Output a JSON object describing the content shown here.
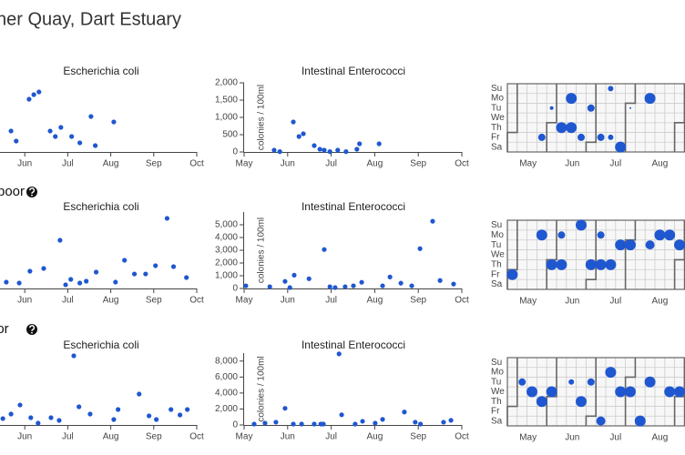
{
  "header": {
    "title": "her Quay, Dart Estuary"
  },
  "section_headings": [
    "poor",
    "oor"
  ],
  "chart_data": [
    {
      "type": "scatter",
      "title": "Escherichia coli",
      "color": "#1f57d0",
      "xlim": [
        5,
        10
      ],
      "ylim": [
        0,
        1000
      ],
      "xticks": [
        {
          "value": 6,
          "label": "Jun"
        },
        {
          "value": 7,
          "label": "Jul"
        },
        {
          "value": 8,
          "label": "Aug"
        },
        {
          "value": 9,
          "label": "Sep"
        },
        {
          "value": 10,
          "label": "Oct"
        }
      ],
      "x": [
        5.68,
        5.8,
        6.1,
        6.21,
        6.33,
        6.59,
        6.71,
        6.84,
        7.09,
        7.28,
        7.54,
        7.64,
        8.07
      ],
      "values": [
        303,
        158,
        763,
        829,
        868,
        303,
        224,
        355,
        224,
        132,
        513,
        92,
        434
      ]
    },
    {
      "type": "scatter",
      "title": "Intestinal Enterococci",
      "color": "#1f57d0",
      "xlim": [
        5,
        10
      ],
      "ylim": [
        0,
        2000
      ],
      "ylabel": "colonies / 100ml",
      "xticks": [
        {
          "value": 5,
          "label": "May"
        },
        {
          "value": 6,
          "label": "Jun"
        },
        {
          "value": 7,
          "label": "Jul"
        },
        {
          "value": 8,
          "label": "Aug"
        },
        {
          "value": 9,
          "label": "Sep"
        },
        {
          "value": 10,
          "label": "Oct"
        }
      ],
      "yticks": [
        0,
        500,
        {
          "value": 1000,
          "label": "1,000"
        },
        {
          "value": 1500,
          "label": "1,500"
        },
        {
          "value": 2000,
          "label": "2,000"
        }
      ],
      "x": [
        5.69,
        5.82,
        6.13,
        6.26,
        6.36,
        6.61,
        6.74,
        6.84,
        6.97,
        7.15,
        7.34,
        7.59,
        7.65,
        8.1
      ],
      "values": [
        53,
        10,
        868,
        447,
        526,
        184,
        79,
        53,
        10,
        53,
        10,
        79,
        237,
        237
      ]
    },
    {
      "type": "calendar",
      "color": "#1f57d0",
      "xlim": [
        -0.5,
        17.5
      ],
      "ylim": [
        -0.5,
        6.5
      ],
      "xticks": [
        {
          "value": 1.6,
          "label": "May"
        },
        {
          "value": 6.1,
          "label": "Jun"
        },
        {
          "value": 10.5,
          "label": "Jul"
        },
        {
          "value": 15,
          "label": "Aug"
        }
      ],
      "yticks": [
        {
          "value": 0,
          "label": "Su"
        },
        {
          "value": 1,
          "label": "Mo"
        },
        {
          "value": 2,
          "label": "Tu"
        },
        {
          "value": 3,
          "label": "We"
        },
        {
          "value": 4,
          "label": "Th"
        },
        {
          "value": 5,
          "label": "Fr"
        },
        {
          "value": 6,
          "label": "Sa"
        }
      ],
      "weeks": [
        3,
        4,
        5,
        6,
        6,
        7,
        8,
        9,
        10,
        10,
        11,
        12,
        14
      ],
      "days": [
        5,
        2,
        4,
        4,
        1,
        5,
        2,
        5,
        0,
        5,
        6,
        2,
        1
      ],
      "values": [
        160,
        40,
        360,
        360,
        360,
        160,
        160,
        160,
        90,
        90,
        360,
        10,
        360
      ]
    },
    {
      "type": "scatter",
      "title": "Escherichia coli",
      "color": "#1f57d0",
      "xlim": [
        5,
        10
      ],
      "ylim": [
        0,
        1000
      ],
      "xticks": [
        {
          "value": 6,
          "label": "Jun"
        },
        {
          "value": 7,
          "label": "Jul"
        },
        {
          "value": 8,
          "label": "Aug"
        },
        {
          "value": 9,
          "label": "Sep"
        },
        {
          "value": 10,
          "label": "Oct"
        }
      ],
      "x": [
        5.57,
        5.87,
        6.12,
        6.44,
        6.82,
        6.95,
        7.07,
        7.28,
        7.43,
        7.66,
        8.11,
        8.32,
        8.55,
        8.81,
        9.04,
        9.31,
        9.46,
        9.76
      ],
      "values": [
        83,
        71,
        226,
        262,
        631,
        48,
        119,
        71,
        95,
        214,
        83,
        369,
        190,
        190,
        298,
        917,
        286,
        143
      ]
    },
    {
      "type": "scatter",
      "title": "Intestinal Enterococci",
      "color": "#1f57d0",
      "xlim": [
        5,
        10
      ],
      "ylim": [
        0,
        6000
      ],
      "ylabel": "colonies / 100ml",
      "xticks": [
        {
          "value": 5,
          "label": "May"
        },
        {
          "value": 6,
          "label": "Jun"
        },
        {
          "value": 7,
          "label": "Jul"
        },
        {
          "value": 8,
          "label": "Aug"
        },
        {
          "value": 9,
          "label": "Sep"
        },
        {
          "value": 10,
          "label": "Oct"
        }
      ],
      "yticks": [
        0,
        {
          "value": 1000,
          "label": "1,000"
        },
        {
          "value": 2000,
          "label": "2,000"
        },
        {
          "value": 3000,
          "label": "3,000"
        },
        {
          "value": 4000,
          "label": "4,000"
        },
        {
          "value": 5000,
          "label": "5,000"
        }
      ],
      "x": [
        5.04,
        5.59,
        5.94,
        6.05,
        6.15,
        6.49,
        6.84,
        6.97,
        7.09,
        7.32,
        7.51,
        7.7,
        8.18,
        8.35,
        8.6,
        8.85,
        9.04,
        9.33,
        9.5,
        9.81
      ],
      "values": [
        208,
        139,
        556,
        69,
        1042,
        764,
        3056,
        139,
        69,
        139,
        208,
        486,
        208,
        903,
        417,
        208,
        3125,
        5278,
        625,
        347
      ]
    },
    {
      "type": "calendar",
      "color": "#1f57d0",
      "xlim": [
        -0.5,
        17.5
      ],
      "ylim": [
        -0.5,
        6.5
      ],
      "xticks": [
        {
          "value": 1.6,
          "label": "May"
        },
        {
          "value": 6.1,
          "label": "Jun"
        },
        {
          "value": 10.5,
          "label": "Jul"
        },
        {
          "value": 15,
          "label": "Aug"
        }
      ],
      "yticks": [
        {
          "value": 0,
          "label": "Su"
        },
        {
          "value": 1,
          "label": "Mo"
        },
        {
          "value": 2,
          "label": "Tu"
        },
        {
          "value": 3,
          "label": "We"
        },
        {
          "value": 4,
          "label": "Th"
        },
        {
          "value": 5,
          "label": "Fr"
        },
        {
          "value": 6,
          "label": "Sa"
        }
      ],
      "weeks": [
        0,
        3,
        4,
        5,
        5,
        7,
        8,
        9,
        9,
        10,
        11,
        12,
        14,
        15,
        16,
        17
      ],
      "days": [
        5,
        1,
        4,
        1,
        4,
        0,
        4,
        1,
        4,
        4,
        2,
        2,
        2,
        1,
        1,
        2
      ],
      "values": [
        360,
        360,
        360,
        160,
        360,
        360,
        360,
        160,
        360,
        360,
        360,
        360,
        250,
        360,
        360,
        360
      ]
    },
    {
      "type": "scatter",
      "title": "Escherichia coli",
      "color": "#1f57d0",
      "xlim": [
        5,
        10
      ],
      "ylim": [
        0,
        1000
      ],
      "xticks": [
        {
          "value": 6,
          "label": "Jun"
        },
        {
          "value": 7,
          "label": "Jul"
        },
        {
          "value": 8,
          "label": "Aug"
        },
        {
          "value": 9,
          "label": "Sep"
        },
        {
          "value": 10,
          "label": "Oct"
        }
      ],
      "x": [
        5.49,
        5.68,
        5.89,
        6.14,
        6.31,
        6.61,
        6.8,
        7.14,
        7.26,
        7.52,
        8.07,
        8.17,
        8.66,
        8.89,
        9.06,
        9.4,
        9.61,
        9.78
      ],
      "values": [
        89,
        152,
        278,
        101,
        25,
        101,
        63,
        962,
        253,
        152,
        76,
        215,
        430,
        127,
        76,
        215,
        139,
        215
      ]
    },
    {
      "type": "scatter",
      "title": "Intestinal Enterococci",
      "color": "#1f57d0",
      "xlim": [
        5,
        10
      ],
      "ylim": [
        0,
        9000
      ],
      "ylabel": "colonies / 100ml",
      "xticks": [
        {
          "value": 5,
          "label": "May"
        },
        {
          "value": 6,
          "label": "Jun"
        },
        {
          "value": 7,
          "label": "Jul"
        },
        {
          "value": 8,
          "label": "Aug"
        },
        {
          "value": 9,
          "label": "Sep"
        },
        {
          "value": 10,
          "label": "Oct"
        }
      ],
      "yticks": [
        0,
        {
          "value": 2000,
          "label": "2,000"
        },
        {
          "value": 4000,
          "label": "4,000"
        },
        {
          "value": 6000,
          "label": "6,000"
        },
        {
          "value": 8000,
          "label": "8,000"
        }
      ],
      "x": [
        5.23,
        5.48,
        5.73,
        5.94,
        6.13,
        6.32,
        6.61,
        6.76,
        6.82,
        7.18,
        7.24,
        7.55,
        7.72,
        8.01,
        8.18,
        8.68,
        8.93,
        9.05,
        9.58,
        9.75
      ],
      "values": [
        116,
        232,
        348,
        2087,
        116,
        116,
        116,
        116,
        116,
        8900,
        1275,
        116,
        464,
        232,
        696,
        1623,
        348,
        116,
        348,
        580
      ]
    },
    {
      "type": "calendar",
      "color": "#1f57d0",
      "xlim": [
        -0.5,
        17.5
      ],
      "ylim": [
        -0.5,
        6.5
      ],
      "xticks": [
        {
          "value": 1.6,
          "label": "May"
        },
        {
          "value": 6.1,
          "label": "Jun"
        },
        {
          "value": 10.5,
          "label": "Jul"
        },
        {
          "value": 15,
          "label": "Aug"
        }
      ],
      "yticks": [
        {
          "value": 0,
          "label": "Su"
        },
        {
          "value": 1,
          "label": "Mo"
        },
        {
          "value": 2,
          "label": "Tu"
        },
        {
          "value": 3,
          "label": "We"
        },
        {
          "value": 4,
          "label": "Th"
        },
        {
          "value": 5,
          "label": "Fr"
        },
        {
          "value": 6,
          "label": "Sa"
        }
      ],
      "weeks": [
        1,
        2,
        3,
        4,
        6,
        7,
        8,
        9,
        10,
        11,
        12,
        13,
        14,
        16,
        17
      ],
      "days": [
        2,
        3,
        4,
        3,
        2,
        4,
        2,
        6,
        1,
        3,
        3,
        6,
        2,
        3,
        3
      ],
      "values": [
        160,
        360,
        360,
        360,
        90,
        360,
        160,
        250,
        360,
        360,
        360,
        360,
        360,
        360,
        360
      ]
    }
  ]
}
